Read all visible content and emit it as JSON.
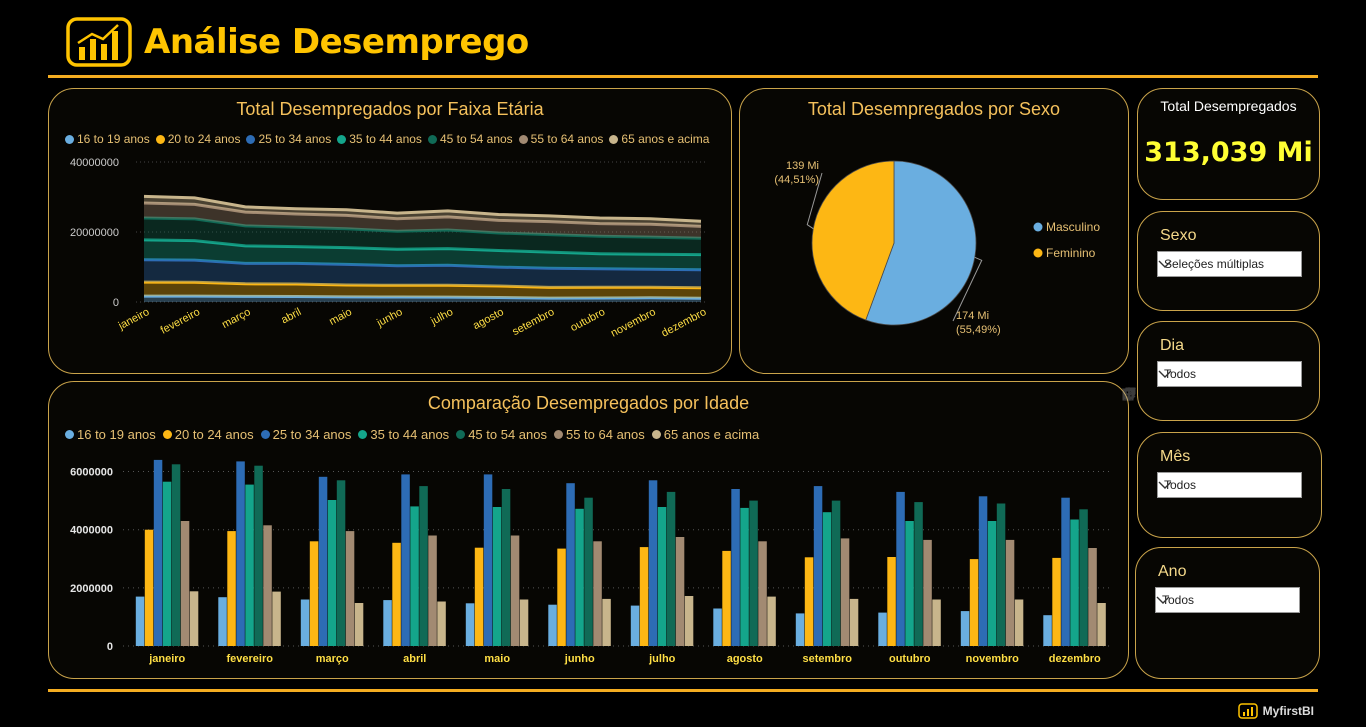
{
  "header": {
    "title": "Análise Desemprego"
  },
  "footer": {
    "brand": "MyfirstBI"
  },
  "colors": {
    "accent": "#ffc400",
    "border": "#c9a34a",
    "series": [
      "#6aaee0",
      "#fdb714",
      "#2d6cb5",
      "#14a58b",
      "#106a56",
      "#a28a72",
      "#c8b58c"
    ]
  },
  "area_chart": {
    "title": "Total Desempregados por Faixa Etária"
  },
  "pie_chart": {
    "title": "Total Desempregados por Sexo",
    "label_feminino_value": "139 Mi",
    "label_feminino_pct": "(44,51%)",
    "label_masculino_value": "174 Mi",
    "label_masculino_pct": "(55,49%)"
  },
  "bar_chart": {
    "title": "Comparação Desempregados por Idade"
  },
  "kpi": {
    "label": "Total Desempregados",
    "value": "313,039 Mi"
  },
  "slicers": [
    {
      "label": "Sexo",
      "value": "Seleções múltiplas"
    },
    {
      "label": "Dia",
      "value": "Todos"
    },
    {
      "label": "Mês",
      "value": "Todos"
    },
    {
      "label": "Ano",
      "value": "Todos"
    }
  ],
  "chart_data": [
    {
      "type": "area",
      "stacked": true,
      "title": "Total Desempregados por Faixa Etária",
      "categories": [
        "janeiro",
        "fevereiro",
        "março",
        "abril",
        "maio",
        "junho",
        "julho",
        "agosto",
        "setembro",
        "outubro",
        "novembro",
        "dezembro"
      ],
      "ylim": [
        0,
        40000000
      ],
      "yticks": [
        0,
        20000000,
        40000000
      ],
      "ytick_labels": [
        "0",
        "20000000",
        "40000000"
      ],
      "grid": true,
      "legend": "top",
      "series": [
        {
          "name": "16 to 19 anos",
          "values": [
            1700000,
            1680000,
            1600000,
            1580000,
            1470000,
            1420000,
            1390000,
            1290000,
            1120000,
            1150000,
            1200000,
            1060000
          ]
        },
        {
          "name": "20 to 24 anos",
          "values": [
            4000000,
            3950000,
            3600000,
            3550000,
            3380000,
            3350000,
            3400000,
            3270000,
            3050000,
            3060000,
            2990000,
            3030000
          ]
        },
        {
          "name": "25 to 34 anos",
          "values": [
            6400000,
            6350000,
            5820000,
            5900000,
            5900000,
            5600000,
            5700000,
            5400000,
            5500000,
            5300000,
            5150000,
            5100000
          ]
        },
        {
          "name": "35 to 44 anos",
          "values": [
            5650000,
            5550000,
            5020000,
            4800000,
            4780000,
            4720000,
            4780000,
            4750000,
            4600000,
            4300000,
            4300000,
            4350000
          ]
        },
        {
          "name": "45 to 54 anos",
          "values": [
            6250000,
            6200000,
            5700000,
            5500000,
            5400000,
            5100000,
            5300000,
            5000000,
            5000000,
            4950000,
            4900000,
            4700000
          ]
        },
        {
          "name": "55 to 64 anos",
          "values": [
            4300000,
            4150000,
            3950000,
            3800000,
            3800000,
            3600000,
            3750000,
            3600000,
            3700000,
            3650000,
            3650000,
            3370000
          ]
        },
        {
          "name": "65 anos e acima",
          "values": [
            1880000,
            1870000,
            1480000,
            1530000,
            1600000,
            1620000,
            1720000,
            1700000,
            1620000,
            1600000,
            1600000,
            1480000
          ]
        }
      ]
    },
    {
      "type": "pie",
      "title": "Total Desempregados por Sexo",
      "legend": "right",
      "slices": [
        {
          "name": "Masculino",
          "value": 174,
          "pct": 55.49
        },
        {
          "name": "Feminino",
          "value": 139,
          "pct": 44.51
        }
      ]
    },
    {
      "type": "bar",
      "title": "Comparação Desempregados por Idade",
      "categories": [
        "janeiro",
        "fevereiro",
        "março",
        "abril",
        "maio",
        "junho",
        "julho",
        "agosto",
        "setembro",
        "outubro",
        "novembro",
        "dezembro"
      ],
      "ylim": [
        0,
        6500000
      ],
      "yticks": [
        0,
        2000000,
        4000000,
        6000000
      ],
      "ytick_labels": [
        "0",
        "2000000",
        "4000000",
        "6000000"
      ],
      "grid": true,
      "legend": "top",
      "series": [
        {
          "name": "16 to 19 anos",
          "values": [
            1700000,
            1680000,
            1600000,
            1580000,
            1470000,
            1420000,
            1390000,
            1290000,
            1120000,
            1150000,
            1200000,
            1060000
          ]
        },
        {
          "name": "20 to 24 anos",
          "values": [
            4000000,
            3950000,
            3600000,
            3550000,
            3380000,
            3350000,
            3400000,
            3270000,
            3050000,
            3060000,
            2990000,
            3030000
          ]
        },
        {
          "name": "25 to 34 anos",
          "values": [
            6400000,
            6350000,
            5820000,
            5900000,
            5900000,
            5600000,
            5700000,
            5400000,
            5500000,
            5300000,
            5150000,
            5100000
          ]
        },
        {
          "name": "35 to 44 anos",
          "values": [
            5650000,
            5550000,
            5020000,
            4800000,
            4780000,
            4720000,
            4780000,
            4750000,
            4600000,
            4300000,
            4300000,
            4350000
          ]
        },
        {
          "name": "45 to 54 anos",
          "values": [
            6250000,
            6200000,
            5700000,
            5500000,
            5400000,
            5100000,
            5300000,
            5000000,
            5000000,
            4950000,
            4900000,
            4700000
          ]
        },
        {
          "name": "55 to 64 anos",
          "values": [
            4300000,
            4150000,
            3950000,
            3800000,
            3800000,
            3600000,
            3750000,
            3600000,
            3700000,
            3650000,
            3650000,
            3370000
          ]
        },
        {
          "name": "65 anos e acima",
          "values": [
            1880000,
            1870000,
            1480000,
            1530000,
            1600000,
            1620000,
            1720000,
            1700000,
            1620000,
            1600000,
            1600000,
            1480000
          ]
        }
      ]
    }
  ]
}
